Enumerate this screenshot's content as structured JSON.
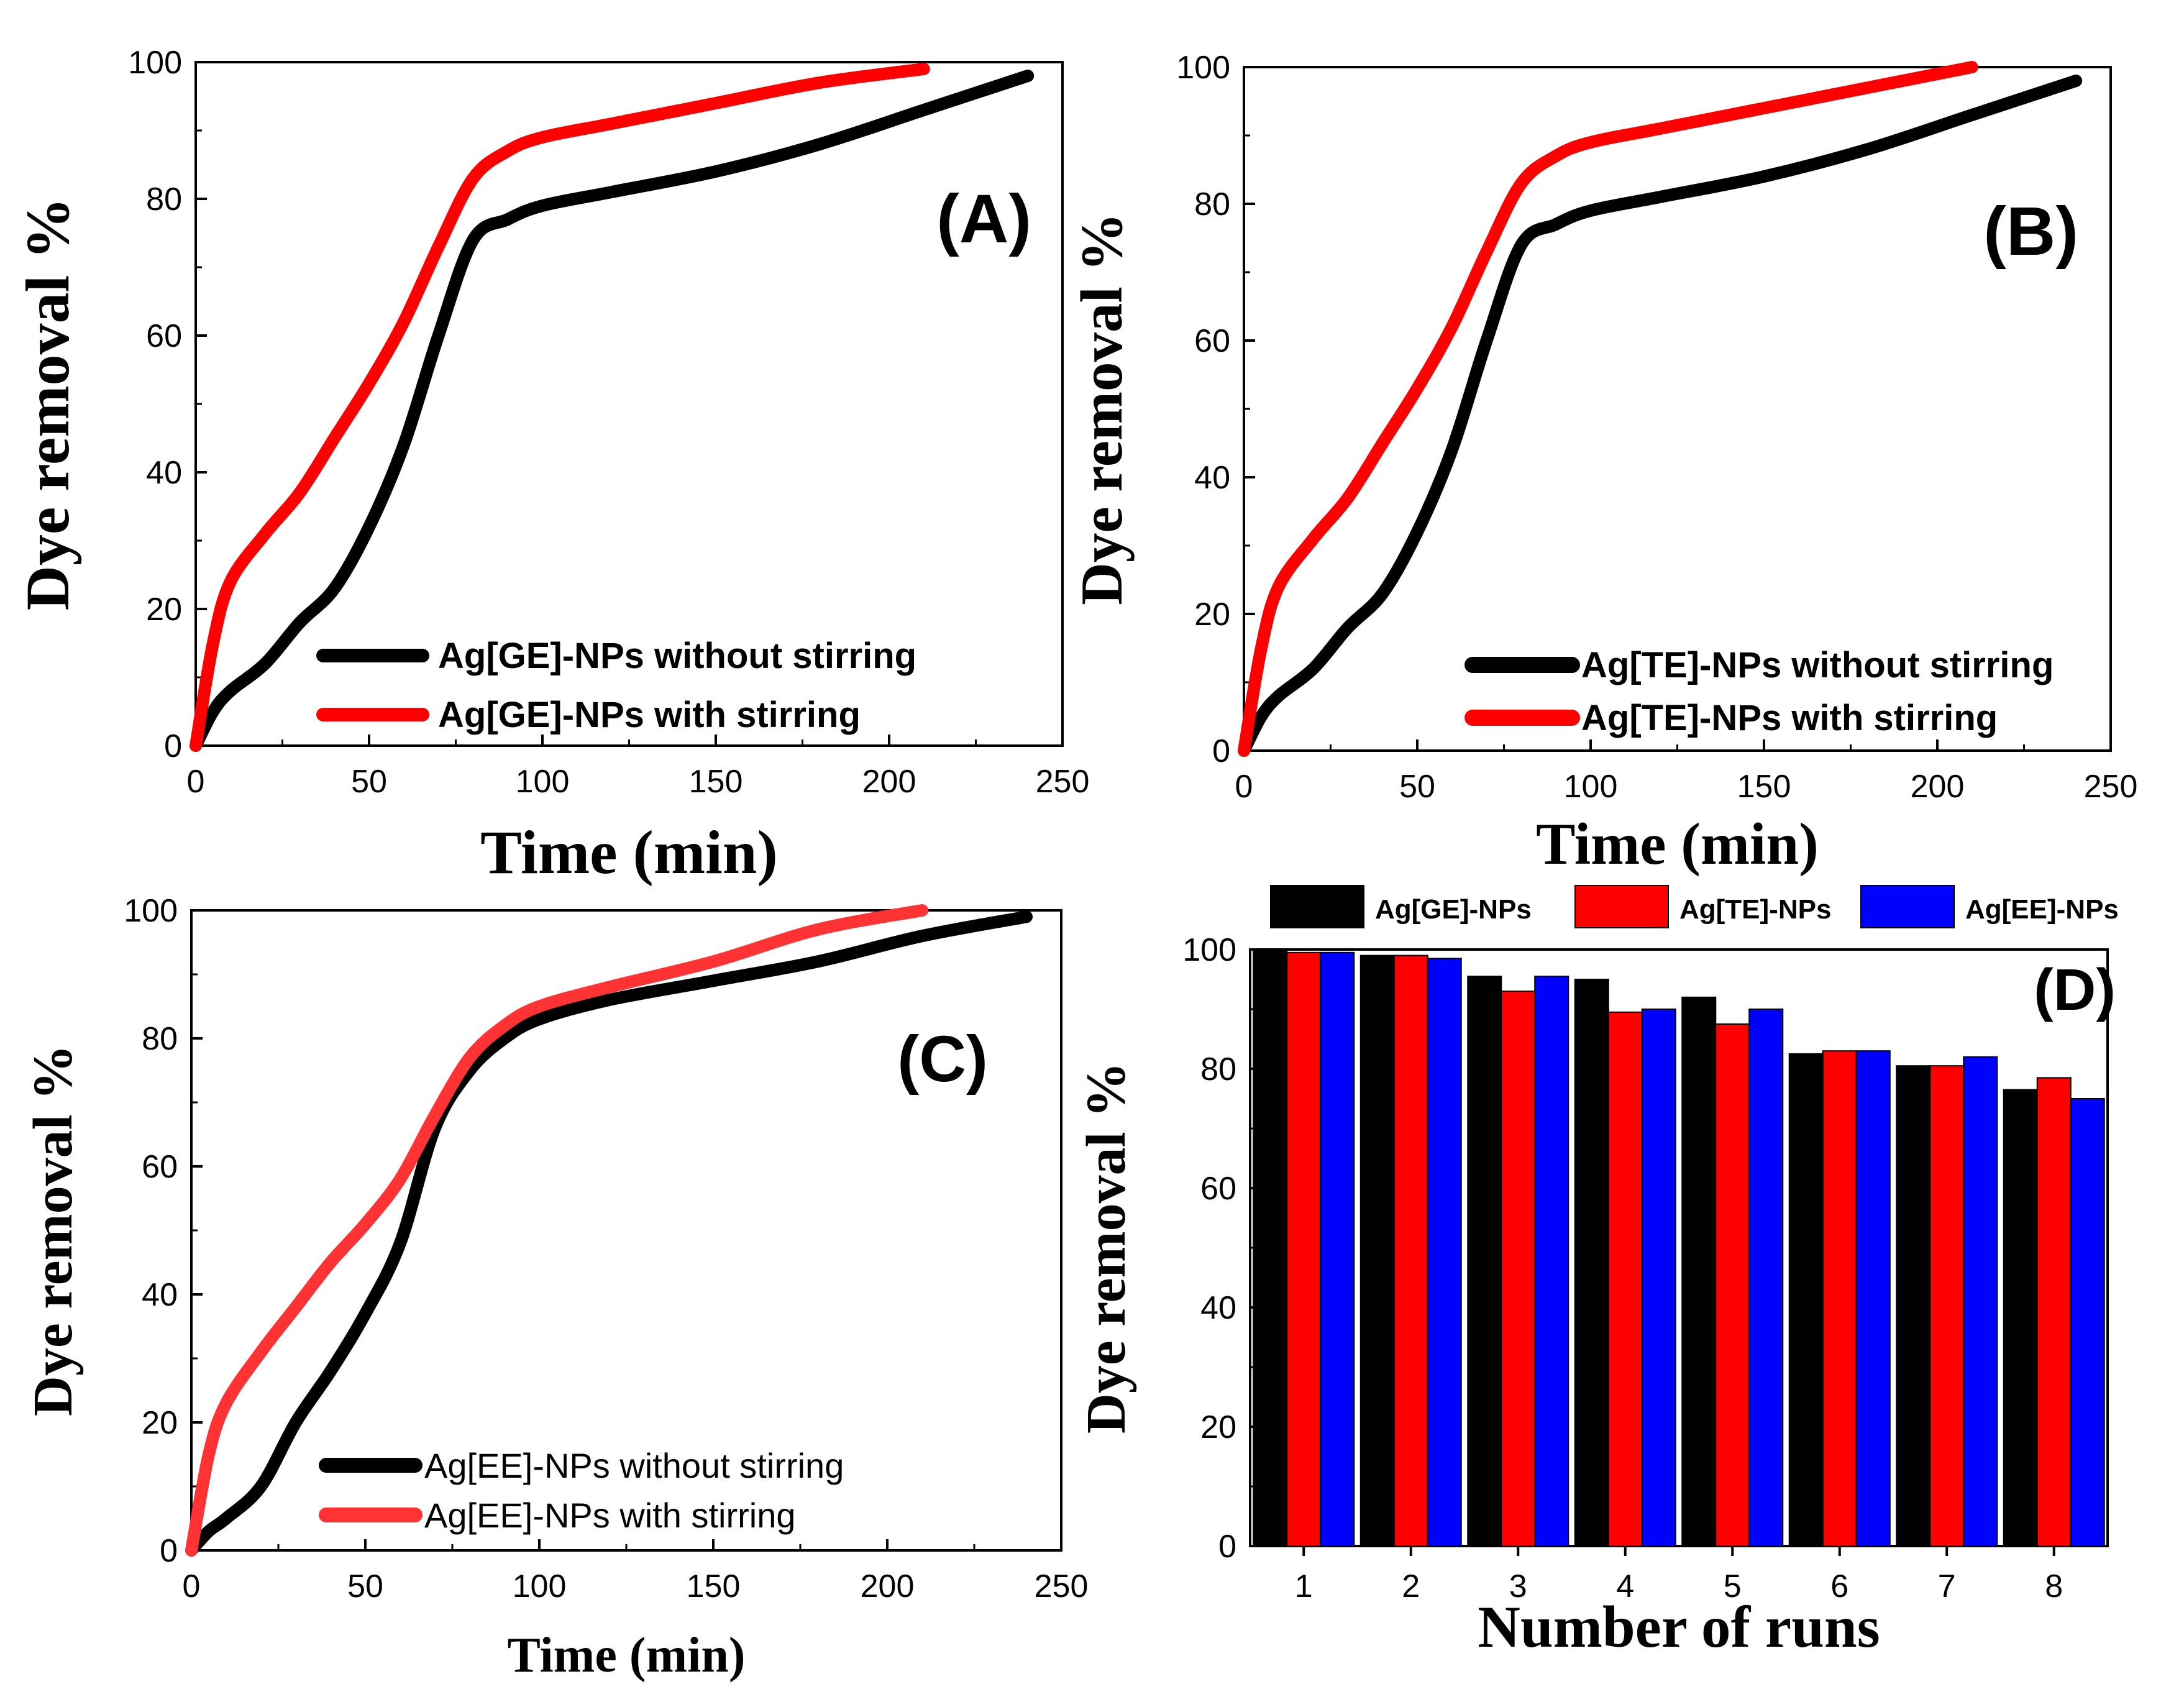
{
  "chart_data": [
    {
      "id": "A",
      "type": "line",
      "panel_label": "(A)",
      "xlabel": "Time (min)",
      "ylabel": "Dye removal %",
      "xlim": [
        0,
        250
      ],
      "ylim": [
        0,
        100
      ],
      "xticks": [
        "0",
        "50",
        "100",
        "150",
        "200",
        "250"
      ],
      "yticks": [
        "0",
        "20",
        "40",
        "60",
        "80",
        "100"
      ],
      "legend_position": "bottom-right",
      "series": [
        {
          "name": "Ag[GE]-NPs without stirring",
          "color": "#000000",
          "x": [
            0,
            5,
            10,
            20,
            30,
            40,
            50,
            60,
            70,
            80,
            90,
            100,
            120,
            150,
            180,
            210,
            240
          ],
          "y": [
            0,
            5,
            8,
            12,
            18,
            23,
            32,
            44,
            60,
            74,
            77,
            79,
            81,
            84,
            88,
            93,
            98
          ]
        },
        {
          "name": "Ag[GE]-NPs with stirring",
          "color": "#ff0000",
          "x": [
            0,
            5,
            10,
            20,
            30,
            40,
            50,
            60,
            70,
            80,
            90,
            100,
            120,
            150,
            180,
            210
          ],
          "y": [
            0,
            15,
            24,
            31,
            37,
            45,
            53,
            62,
            73,
            83,
            87,
            89,
            91,
            94,
            97,
            99
          ]
        }
      ]
    },
    {
      "id": "B",
      "type": "line",
      "panel_label": "(B)",
      "xlabel": "Time (min)",
      "ylabel": "Dye removal %",
      "xlim": [
        0,
        250
      ],
      "ylim": [
        0,
        100
      ],
      "xticks": [
        "0",
        "50",
        "100",
        "150",
        "200",
        "250"
      ],
      "yticks": [
        "0",
        "20",
        "40",
        "60",
        "80",
        "100"
      ],
      "legend_position": "bottom-right",
      "series": [
        {
          "name": "Ag[TE]-NPs without stirring",
          "color": "#000000",
          "x": [
            0,
            5,
            10,
            20,
            30,
            40,
            50,
            60,
            70,
            80,
            90,
            100,
            120,
            150,
            180,
            210,
            240
          ],
          "y": [
            0,
            5,
            8,
            12,
            18,
            23,
            32,
            44,
            60,
            74,
            77,
            79,
            81,
            84,
            88,
            93,
            98
          ]
        },
        {
          "name": "Ag[TE]-NPs with stirring",
          "color": "#ff0000",
          "x": [
            0,
            5,
            10,
            20,
            30,
            40,
            50,
            60,
            70,
            80,
            90,
            100,
            120,
            150,
            180,
            210
          ],
          "y": [
            0,
            15,
            24,
            31,
            37,
            45,
            53,
            62,
            73,
            83,
            87,
            89,
            91,
            94,
            97,
            100
          ]
        }
      ]
    },
    {
      "id": "C",
      "type": "line",
      "panel_label": "(C)",
      "xlabel": "Time (min)",
      "ylabel": "Dye removal %",
      "xlim": [
        0,
        250
      ],
      "ylim": [
        0,
        100
      ],
      "xticks": [
        "0",
        "50",
        "100",
        "150",
        "200",
        "250"
      ],
      "yticks": [
        "0",
        "20",
        "40",
        "60",
        "80",
        "100"
      ],
      "legend_position": "bottom-right",
      "series": [
        {
          "name": "Ag[EE]-NPs without stirring",
          "color": "#000000",
          "x": [
            0,
            5,
            10,
            20,
            30,
            40,
            50,
            60,
            70,
            80,
            90,
            100,
            120,
            150,
            180,
            210,
            240
          ],
          "y": [
            0,
            3,
            5,
            10,
            20,
            28,
            37,
            48,
            66,
            75,
            80,
            83,
            86,
            89,
            92,
            96,
            99
          ]
        },
        {
          "name": "Ag[EE]-NPs with stirring",
          "color": "#ff3333",
          "x": [
            0,
            5,
            10,
            20,
            30,
            40,
            50,
            60,
            70,
            80,
            90,
            100,
            120,
            150,
            180,
            210
          ],
          "y": [
            0,
            15,
            23,
            31,
            38,
            45,
            51,
            58,
            68,
            77,
            82,
            85,
            88,
            92,
            97,
            100
          ]
        }
      ]
    },
    {
      "id": "D",
      "type": "bar",
      "panel_label": "(D)",
      "xlabel": "Number of runs",
      "ylabel": "Dye removal %",
      "ylim": [
        0,
        100
      ],
      "yticks": [
        "0",
        "20",
        "40",
        "60",
        "80",
        "100"
      ],
      "categories": [
        "1",
        "2",
        "3",
        "4",
        "5",
        "6",
        "7",
        "8"
      ],
      "legend_position": "top",
      "series": [
        {
          "name": "Ag[GE]-NPs",
          "color": "#000000",
          "values": [
            100,
            99,
            95.5,
            95,
            92,
            82.5,
            80.5,
            76.5
          ]
        },
        {
          "name": "Ag[TE]-NPs",
          "color": "#ff0000",
          "values": [
            99.5,
            99,
            93,
            89.5,
            87.5,
            83,
            80.5,
            78.5
          ]
        },
        {
          "name": "Ag[EE]-NPs",
          "color": "#0000ff",
          "values": [
            99.5,
            98.5,
            95.5,
            90,
            90,
            83,
            82,
            75
          ]
        }
      ]
    }
  ]
}
